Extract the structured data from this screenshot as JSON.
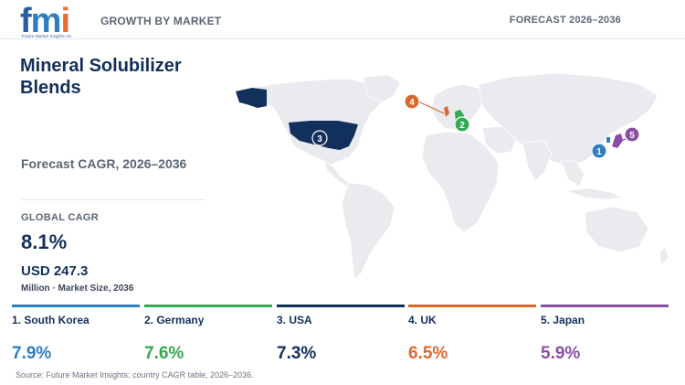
{
  "header": {
    "logo_text": "fmi",
    "logo_subtext": "Future Market Insights Inc.",
    "left_label": "GROWTH BY MARKET",
    "right_label": "FORECAST 2026–2036"
  },
  "title": "Mineral Solubilizer Blends",
  "subtitle": "Forecast CAGR, 2026–2036",
  "global": {
    "label": "GLOBAL CAGR",
    "value": "8.1%",
    "market_size": "USD 247.3",
    "market_size_note": "Million · Market Size, 2036"
  },
  "colors": {
    "south_korea": "#2f7fc0",
    "germany": "#35a853",
    "usa": "#12305c",
    "uk": "#d9692f",
    "japan": "#8a4fa3",
    "land": "#e9ebee"
  },
  "countries": [
    {
      "rank": "1",
      "name": "1. South Korea",
      "cagr": "7.9%",
      "color": "#2f7fc0"
    },
    {
      "rank": "2",
      "name": "2. Germany",
      "cagr": "7.6%",
      "color": "#35a853"
    },
    {
      "rank": "3",
      "name": "3. USA",
      "cagr": "7.3%",
      "color": "#12305c"
    },
    {
      "rank": "4",
      "name": "4. UK",
      "cagr": "6.5%",
      "color": "#d9692f"
    },
    {
      "rank": "5",
      "name": "5. Japan",
      "cagr": "5.9%",
      "color": "#8a4fa3"
    }
  ],
  "source": "Source: Future Market Insights; country CAGR table, 2026–2036."
}
